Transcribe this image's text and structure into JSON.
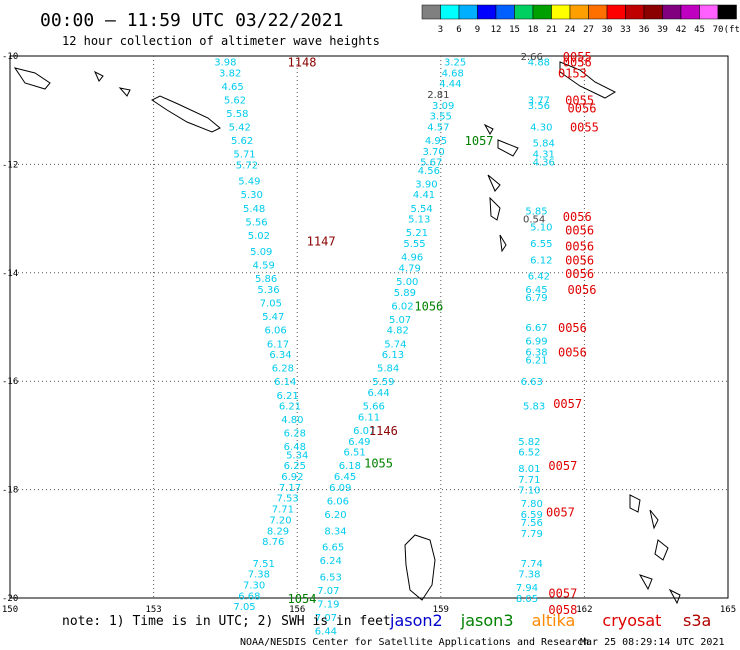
{
  "header": {
    "title": "00:00 – 11:59 UTC 03/22/2021",
    "subtitle": "12 hour collection of altimeter wave heights"
  },
  "legend": {
    "unit": "(ft)",
    "colors": [
      "#808080",
      "#00ffff",
      "#00b0ff",
      "#0000ff",
      "#0060ff",
      "#00d060",
      "#00a000",
      "#ffff00",
      "#ffa000",
      "#ff7000",
      "#ff0000",
      "#c00000",
      "#8b0000",
      "#800080",
      "#c000c0",
      "#ff60ff",
      "#000000"
    ],
    "labels": [
      "3",
      "6",
      "9",
      "12",
      "15",
      "18",
      "21",
      "24",
      "27",
      "30",
      "33",
      "36",
      "39",
      "42",
      "45",
      "70"
    ]
  },
  "chart_data": {
    "type": "scatter",
    "title": "00:00 – 11:59 UTC 03/22/2021",
    "subtitle": "12 hour collection of altimeter wave heights",
    "xlim": [
      150,
      165
    ],
    "ylim": [
      -20,
      -10
    ],
    "x_ticks": [
      "150",
      "153",
      "156",
      "159",
      "162",
      "165"
    ],
    "y_ticks": [
      "-10",
      "-12",
      "-14",
      "-16",
      "-18",
      "-20"
    ],
    "grid": true,
    "units": "ft",
    "series": [
      {
        "name": "jason2",
        "color": "#00ccee",
        "points": [
          [
            154.5,
            -10.1,
            "3.98"
          ],
          [
            154.6,
            -10.3,
            "3.82"
          ],
          [
            154.65,
            -10.55,
            "4.65"
          ],
          [
            154.7,
            -10.8,
            "5.62"
          ],
          [
            154.75,
            -11.05,
            "5.58"
          ],
          [
            154.8,
            -11.3,
            "5.42"
          ],
          [
            154.85,
            -11.55,
            "5.62"
          ],
          [
            154.9,
            -11.8,
            "5.71"
          ],
          [
            154.95,
            -12.0,
            "5.72"
          ],
          [
            155.0,
            -12.3,
            "5.49"
          ],
          [
            155.05,
            -12.55,
            "5.30"
          ],
          [
            155.1,
            -12.8,
            "5.48"
          ],
          [
            155.15,
            -13.05,
            "5.56"
          ],
          [
            155.2,
            -13.3,
            "5.02"
          ],
          [
            155.25,
            -13.6,
            "5.09"
          ],
          [
            155.3,
            -13.85,
            "4.59"
          ],
          [
            155.35,
            -14.1,
            "5.86"
          ],
          [
            155.4,
            -14.3,
            "5.36"
          ],
          [
            155.45,
            -14.55,
            "7.05"
          ],
          [
            155.5,
            -14.8,
            "5.47"
          ],
          [
            155.55,
            -15.05,
            "6.06"
          ],
          [
            155.6,
            -15.3,
            "6.17"
          ],
          [
            155.65,
            -15.5,
            "6.34"
          ],
          [
            155.7,
            -15.75,
            "6.28"
          ],
          [
            155.75,
            -16.0,
            "6.14"
          ],
          [
            155.8,
            -16.25,
            "6.21"
          ],
          [
            155.85,
            -16.45,
            "6.21"
          ],
          [
            155.9,
            -16.7,
            "4.80"
          ],
          [
            155.95,
            -16.95,
            "6.28"
          ],
          [
            155.95,
            -17.2,
            "6.48"
          ],
          [
            156.0,
            -17.35,
            "5.34"
          ],
          [
            155.95,
            -17.55,
            "6.25"
          ],
          [
            155.9,
            -17.75,
            "6.92"
          ],
          [
            155.85,
            -17.95,
            "7.17"
          ],
          [
            155.8,
            -18.15,
            "7.53"
          ],
          [
            155.7,
            -18.35,
            "7.71"
          ],
          [
            155.65,
            -18.55,
            "7.20"
          ],
          [
            155.6,
            -18.75,
            "8.29"
          ],
          [
            155.5,
            -18.95,
            "8.76"
          ],
          [
            155.3,
            -19.35,
            "7.51"
          ],
          [
            155.2,
            -19.55,
            "7.38"
          ],
          [
            155.1,
            -19.75,
            "7.30"
          ],
          [
            155.0,
            -19.95,
            "6.68"
          ],
          [
            154.9,
            -20.15,
            "7.05"
          ],
          [
            159.3,
            -10.1,
            "3.25"
          ],
          [
            159.25,
            -10.3,
            "4.68"
          ],
          [
            159.2,
            -10.5,
            "4.44"
          ],
          [
            159.05,
            -10.9,
            "3.09"
          ],
          [
            159.0,
            -11.1,
            "3.55"
          ],
          [
            158.95,
            -11.3,
            "4.57"
          ],
          [
            158.9,
            -11.55,
            "4.95"
          ],
          [
            158.85,
            -11.75,
            "3.70"
          ],
          [
            158.8,
            -11.95,
            "5.67"
          ],
          [
            158.75,
            -12.1,
            "4.56"
          ],
          [
            158.7,
            -12.35,
            "3.90"
          ],
          [
            158.65,
            -12.55,
            "4.41"
          ],
          [
            158.6,
            -12.8,
            "5.54"
          ],
          [
            158.55,
            -13.0,
            "5.13"
          ],
          [
            158.5,
            -13.25,
            "5.21"
          ],
          [
            158.45,
            -13.45,
            "5.55"
          ],
          [
            158.4,
            -13.7,
            "4.96"
          ],
          [
            158.35,
            -13.9,
            "4.79"
          ],
          [
            158.3,
            -14.15,
            "5.00"
          ],
          [
            158.25,
            -14.35,
            "5.89"
          ],
          [
            158.2,
            -14.6,
            "6.02"
          ],
          [
            158.15,
            -14.85,
            "5.07"
          ],
          [
            158.1,
            -15.05,
            "4.82"
          ],
          [
            158.05,
            -15.3,
            "5.74"
          ],
          [
            158.0,
            -15.5,
            "6.13"
          ],
          [
            157.9,
            -15.75,
            "5.84"
          ],
          [
            157.8,
            -16.0,
            "5.59"
          ],
          [
            157.7,
            -16.2,
            "6.44"
          ],
          [
            157.6,
            -16.45,
            "5.66"
          ],
          [
            157.5,
            -16.65,
            "6.11"
          ],
          [
            157.4,
            -16.9,
            "6.07"
          ],
          [
            157.3,
            -17.1,
            "6.49"
          ],
          [
            157.2,
            -17.3,
            "6.51"
          ],
          [
            157.1,
            -17.55,
            "6.18"
          ],
          [
            157.0,
            -17.75,
            "6.45"
          ],
          [
            156.9,
            -17.95,
            "6.09"
          ],
          [
            156.85,
            -18.2,
            "6.06"
          ],
          [
            156.8,
            -18.45,
            "6.20"
          ],
          [
            156.8,
            -18.75,
            "8.34"
          ],
          [
            156.75,
            -19.05,
            "6.65"
          ],
          [
            156.7,
            -19.3,
            "6.24"
          ],
          [
            156.7,
            -19.6,
            "6.53"
          ],
          [
            156.65,
            -19.85,
            "7.07"
          ],
          [
            156.65,
            -20.1,
            "7.19"
          ],
          [
            156.6,
            -20.35,
            "7.07"
          ],
          [
            156.6,
            -20.6,
            "6.44"
          ],
          [
            161.05,
            -10.1,
            "4.88"
          ],
          [
            161.05,
            -10.8,
            "3.77"
          ],
          [
            161.05,
            -10.9,
            "3.56"
          ],
          [
            161.1,
            -11.3,
            "4.30"
          ],
          [
            161.15,
            -11.6,
            "5.84"
          ],
          [
            161.15,
            -11.8,
            "4.31"
          ],
          [
            161.15,
            -11.95,
            "4.36"
          ],
          [
            161.0,
            -12.85,
            "5.85"
          ],
          [
            161.1,
            -13.15,
            "5.10"
          ],
          [
            161.1,
            -13.45,
            "6.55"
          ],
          [
            161.1,
            -13.75,
            "6.12"
          ],
          [
            161.05,
            -14.05,
            "6.42"
          ],
          [
            161.0,
            -14.3,
            "6.45"
          ],
          [
            161.0,
            -14.45,
            "6.79"
          ],
          [
            161.0,
            -15.0,
            "6.67"
          ],
          [
            161.0,
            -15.25,
            "6.99"
          ],
          [
            161.0,
            -15.45,
            "6.38"
          ],
          [
            161.0,
            -15.6,
            "6.21"
          ],
          [
            160.9,
            -16.0,
            "6.63"
          ],
          [
            160.95,
            -16.45,
            "5.83"
          ],
          [
            160.85,
            -17.1,
            "5.82"
          ],
          [
            160.85,
            -17.3,
            "6.52"
          ],
          [
            160.85,
            -17.6,
            "8.01"
          ],
          [
            160.85,
            -17.8,
            "7.71"
          ],
          [
            160.85,
            -18.0,
            "7.10"
          ],
          [
            160.9,
            -18.25,
            "7.80"
          ],
          [
            160.9,
            -18.45,
            "6.59"
          ],
          [
            160.9,
            -18.6,
            "7.56"
          ],
          [
            160.9,
            -18.8,
            "7.79"
          ],
          [
            160.9,
            -19.35,
            "7.74"
          ],
          [
            160.85,
            -19.55,
            "7.38"
          ],
          [
            160.8,
            -19.8,
            "7.94"
          ],
          [
            160.8,
            -20.0,
            "8.05"
          ]
        ]
      },
      {
        "name": "other",
        "color": "#404040",
        "points": [
          [
            158.95,
            -10.7,
            "2.81"
          ],
          [
            160.9,
            -10.0,
            "2.66"
          ],
          [
            160.95,
            -13.0,
            "0.54"
          ]
        ]
      }
    ],
    "pass_labels": [
      {
        "text": "1148",
        "x": 156.1,
        "y": -10.1,
        "color": "#8b0000"
      },
      {
        "text": "1147",
        "x": 156.5,
        "y": -13.4,
        "color": "#8b0000"
      },
      {
        "text": "1146",
        "x": 157.8,
        "y": -16.9,
        "color": "#8b0000"
      },
      {
        "text": "1057",
        "x": 159.8,
        "y": -11.55,
        "color": "#008000"
      },
      {
        "text": "1056",
        "x": 158.75,
        "y": -14.6,
        "color": "#008000"
      },
      {
        "text": "1055",
        "x": 157.7,
        "y": -17.5,
        "color": "#008000"
      },
      {
        "text": "1054",
        "x": 156.1,
        "y": -20.0,
        "color": "#008000"
      },
      {
        "text": "0055",
        "x": 161.85,
        "y": -10.0,
        "color": "#e00000"
      },
      {
        "text": "0056",
        "x": 161.85,
        "y": -10.1,
        "color": "#e00000"
      },
      {
        "text": "0153",
        "x": 161.75,
        "y": -10.3,
        "color": "#e00000"
      },
      {
        "text": "0055",
        "x": 161.9,
        "y": -10.8,
        "color": "#e00000"
      },
      {
        "text": "0056",
        "x": 161.95,
        "y": -10.95,
        "color": "#e00000"
      },
      {
        "text": "0055",
        "x": 162.0,
        "y": -11.3,
        "color": "#e00000"
      },
      {
        "text": "0056",
        "x": 161.85,
        "y": -12.95,
        "color": "#e00000"
      },
      {
        "text": "0056",
        "x": 161.9,
        "y": -13.2,
        "color": "#e00000"
      },
      {
        "text": "0056",
        "x": 161.9,
        "y": -13.5,
        "color": "#e00000"
      },
      {
        "text": "0056",
        "x": 161.9,
        "y": -13.75,
        "color": "#e00000"
      },
      {
        "text": "0056",
        "x": 161.9,
        "y": -14.0,
        "color": "#e00000"
      },
      {
        "text": "0056",
        "x": 161.95,
        "y": -14.3,
        "color": "#e00000"
      },
      {
        "text": "0056",
        "x": 161.75,
        "y": -15.0,
        "color": "#e00000"
      },
      {
        "text": "0056",
        "x": 161.75,
        "y": -15.45,
        "color": "#e00000"
      },
      {
        "text": "0057",
        "x": 161.65,
        "y": -16.4,
        "color": "#e00000"
      },
      {
        "text": "0057",
        "x": 161.55,
        "y": -17.55,
        "color": "#e00000"
      },
      {
        "text": "0057",
        "x": 161.5,
        "y": -18.4,
        "color": "#e00000"
      },
      {
        "text": "0057",
        "x": 161.55,
        "y": -19.9,
        "color": "#e00000"
      },
      {
        "text": "0058",
        "x": 161.55,
        "y": -20.2,
        "color": "#e00000"
      }
    ]
  },
  "footer": {
    "note": "note: 1) Time is in UTC; 2) SWH is in feet",
    "satellites": [
      {
        "name": "jason2",
        "color": "#0000cc"
      },
      {
        "name": "jason3",
        "color": "#008000"
      },
      {
        "name": "altika",
        "color": "#ff8800"
      },
      {
        "name": "cryosat",
        "color": "#dd0000"
      },
      {
        "name": "s3a",
        "color": "#b00000"
      }
    ],
    "credit": "NOAA/NESDIS Center for Satellite Applications and Research",
    "timestamp": "Mar 25 08:29:14 UTC 2021"
  }
}
